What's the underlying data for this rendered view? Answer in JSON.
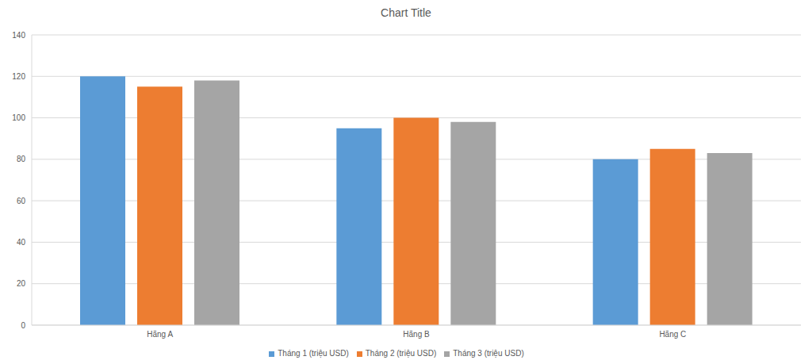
{
  "chart_data": {
    "type": "bar",
    "title": "Chart Title",
    "categories": [
      "Hãng A",
      "Hãng B",
      "Hãng C"
    ],
    "series": [
      {
        "name": "Tháng 1 (triệu USD)",
        "color": "#5b9bd5",
        "values": [
          120,
          95,
          80
        ]
      },
      {
        "name": "Tháng 2 (triệu USD)",
        "color": "#ed7d31",
        "values": [
          115,
          100,
          85
        ]
      },
      {
        "name": "Tháng 3 (triệu USD)",
        "color": "#a5a5a5",
        "values": [
          118,
          98,
          83
        ]
      }
    ],
    "ylim": [
      0,
      140
    ],
    "yticks": [
      0,
      20,
      40,
      60,
      80,
      100,
      120,
      140
    ],
    "grid": true,
    "legend": "bottom"
  }
}
